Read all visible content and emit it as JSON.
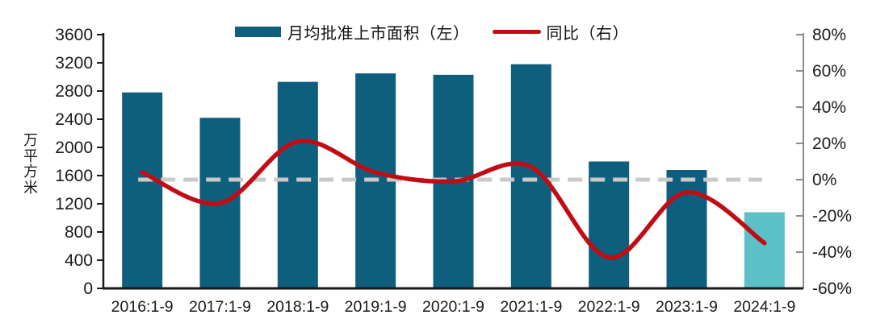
{
  "chart_data": {
    "type": "bar",
    "subtype": "bar-line-combo",
    "categories": [
      "2016:1-9",
      "2017:1-9",
      "2018:1-9",
      "2019:1-9",
      "2020:1-9",
      "2021:1-9",
      "2022:1-9",
      "2023:1-9",
      "2024:1-9"
    ],
    "series": [
      {
        "name": "月均批准上市面积（左）",
        "type": "bar",
        "axis": "left",
        "values": [
          2780,
          2420,
          2930,
          3050,
          3030,
          3180,
          1800,
          1680,
          1080
        ],
        "color": "#0e5e7e",
        "last_bar_color": "#5bc1c7"
      },
      {
        "name": "同比（右）",
        "type": "line",
        "axis": "right",
        "values": [
          4,
          -13,
          21,
          4,
          -1,
          7,
          -43,
          -7,
          -35
        ],
        "unit": "%",
        "color": "#c00d15"
      }
    ],
    "left_axis": {
      "title": "万平方米",
      "min": 0,
      "max": 3600,
      "tick_values": [
        3600,
        3200,
        2800,
        2400,
        2000,
        1600,
        1200,
        800,
        400,
        0
      ],
      "tick_labels": [
        "3600",
        "3200",
        "2800",
        "2400",
        "2000",
        "1600",
        "1200",
        "800",
        "400",
        "0"
      ]
    },
    "right_axis": {
      "min": -60,
      "max": 80,
      "tick_values": [
        80,
        60,
        40,
        20,
        0,
        -20,
        -40,
        -60
      ],
      "tick_labels": [
        "80%",
        "60%",
        "40%",
        "20%",
        "0%",
        "-20%",
        "-40%",
        "-60%"
      ]
    },
    "zero_line": {
      "value": 0,
      "color": "#c9c9c9",
      "style": "dashed"
    },
    "legend": [
      {
        "label": "月均批准上市面积（左）",
        "swatch": "bar",
        "color": "#0e5e7e"
      },
      {
        "label": "同比（右）",
        "swatch": "line",
        "color": "#c00d15"
      }
    ],
    "grid": "off",
    "legend_position": "top-center"
  }
}
